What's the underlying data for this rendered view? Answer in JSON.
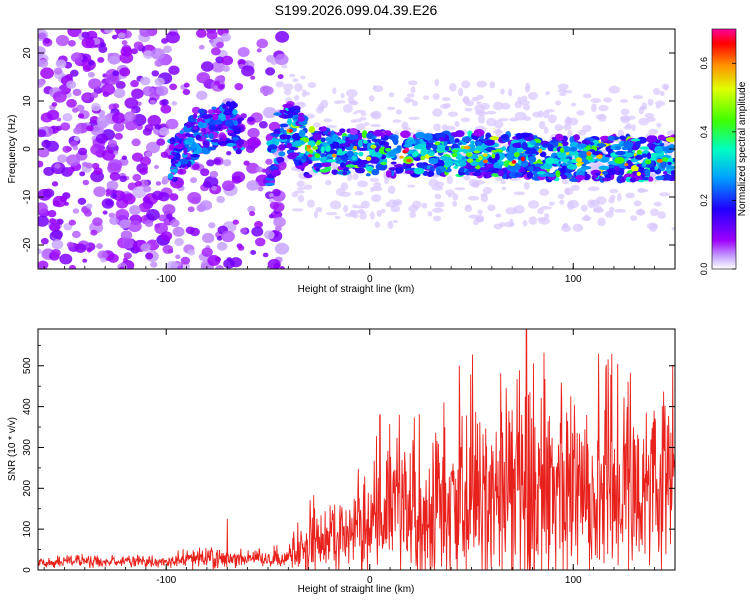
{
  "figure": {
    "title": "S199.2026.099.04.39.E26"
  },
  "chart_data": [
    {
      "type": "heatmap",
      "name": "spectrogram",
      "title": "S199.2026.099.04.39.E26",
      "xlabel": "Height of straight line (km)",
      "ylabel": "Frequency (Hz)",
      "xlim": [
        -163,
        150
      ],
      "ylim": [
        -25,
        25
      ],
      "xticks": [
        -100,
        0,
        100
      ],
      "yticks": [
        -20,
        -10,
        0,
        10,
        20
      ],
      "colorbar": {
        "label": "Normalized spectral amplitude",
        "range": [
          0,
          0.7
        ],
        "ticks": [
          0.0,
          0.2,
          0.4,
          0.6
        ],
        "colormap": [
          "#ffffff",
          "#9d00ff",
          "#0000ff",
          "#00ffff",
          "#00ff00",
          "#ffff00",
          "#ff8000",
          "#ff0000",
          "#ff00ff"
        ]
      },
      "description_data": {
        "signal_center_hz": [
          {
            "x": -95,
            "f": -2
          },
          {
            "x": -85,
            "f": 3
          },
          {
            "x": -70,
            "f": 6
          },
          {
            "x": -50,
            "f": -3
          },
          {
            "x": -42,
            "f": 5
          },
          {
            "x": -30,
            "f": 0
          },
          {
            "x": 0,
            "f": -1
          },
          {
            "x": 50,
            "f": -1
          },
          {
            "x": 100,
            "f": -2
          },
          {
            "x": 150,
            "f": -2
          }
        ],
        "peak_amplitude": 0.7
      }
    },
    {
      "type": "line",
      "name": "snr",
      "xlabel": "Height of straight line (km)",
      "ylabel": "SNR (10 * v/v)",
      "xlim": [
        -163,
        150
      ],
      "ylim": [
        0,
        590
      ],
      "xticks": [
        -100,
        0,
        100
      ],
      "yticks": [
        0,
        100,
        200,
        300,
        400,
        500
      ],
      "color": "#e8211c",
      "envelope": [
        {
          "x": -163,
          "base": 18,
          "amp": 15
        },
        {
          "x": -100,
          "base": 20,
          "amp": 15
        },
        {
          "x": -80,
          "base": 28,
          "amp": 30
        },
        {
          "x": -60,
          "base": 25,
          "amp": 20
        },
        {
          "x": -40,
          "base": 30,
          "amp": 25
        },
        {
          "x": -30,
          "base": 70,
          "amp": 90
        },
        {
          "x": -10,
          "base": 95,
          "amp": 120
        },
        {
          "x": 0,
          "base": 110,
          "amp": 150
        },
        {
          "x": 20,
          "base": 140,
          "amp": 200
        },
        {
          "x": 50,
          "base": 170,
          "amp": 260
        },
        {
          "x": 80,
          "base": 180,
          "amp": 280
        },
        {
          "x": 100,
          "base": 185,
          "amp": 260
        },
        {
          "x": 130,
          "base": 190,
          "amp": 240
        },
        {
          "x": 150,
          "base": 200,
          "amp": 220
        }
      ],
      "notable_peaks": [
        {
          "x": -70,
          "y": 125
        },
        {
          "x": 5,
          "y": 380
        },
        {
          "x": 77,
          "y": 590
        },
        {
          "x": 44,
          "y": 500
        },
        {
          "x": 116,
          "y": 490
        }
      ]
    }
  ]
}
